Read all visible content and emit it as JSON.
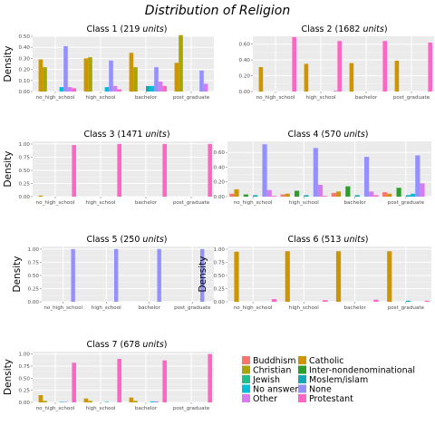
{
  "title": "Distribution of Religion",
  "colors": {
    "panel_bg": "#ebebeb",
    "grid": "#ffffff",
    "tick_text": "#4d4d4d"
  },
  "legend": [
    {
      "label": "Buddhism",
      "color": "#f8766d"
    },
    {
      "label": "Catholic",
      "color": "#cd9600"
    },
    {
      "label": "Christian",
      "color": "#a8a400"
    },
    {
      "label": "Inter-nondenominational",
      "color": "#2aa02a"
    },
    {
      "label": "Jewish",
      "color": "#1fbf8c"
    },
    {
      "label": "Moslem/islam",
      "color": "#11aab4"
    },
    {
      "label": "No answer",
      "color": "#00bfd8"
    },
    {
      "label": "None",
      "color": "#9590ff"
    },
    {
      "label": "Other",
      "color": "#d87bf0"
    },
    {
      "label": "Protestant",
      "color": "#ff66c4"
    }
  ],
  "chart_data": [
    {
      "type": "bar",
      "title": "Class 1 (219 units)",
      "ylabel": "Density",
      "categories": [
        "no_high_school",
        "high_school",
        "bachelor",
        "post_graduate"
      ],
      "ylim": [
        0,
        0.5
      ],
      "yticks": [
        0.0,
        0.1,
        0.2,
        0.3,
        0.4,
        0.5
      ],
      "series": [
        {
          "name": "Buddhism",
          "values": [
            0,
            0,
            0,
            0
          ]
        },
        {
          "name": "Catholic",
          "values": [
            0.29,
            0.3,
            0.35,
            0.26
          ]
        },
        {
          "name": "Christian",
          "values": [
            0.22,
            0.31,
            0.22,
            0.51
          ]
        },
        {
          "name": "Inter-nondenominational",
          "values": [
            0,
            0,
            0,
            0
          ]
        },
        {
          "name": "Jewish",
          "values": [
            0,
            0,
            0,
            0
          ]
        },
        {
          "name": "Moslem/islam",
          "values": [
            0,
            0,
            0.05,
            0
          ]
        },
        {
          "name": "No answer",
          "values": [
            0.04,
            0.04,
            0.05,
            0
          ]
        },
        {
          "name": "None",
          "values": [
            0.41,
            0.28,
            0.22,
            0.19
          ]
        },
        {
          "name": "Other",
          "values": [
            0.04,
            0.05,
            0.09,
            0.07
          ]
        },
        {
          "name": "Protestant",
          "values": [
            0.03,
            0.02,
            0.05,
            0
          ]
        }
      ]
    },
    {
      "type": "bar",
      "title": "Class 2 (1682 units)",
      "ylabel": "",
      "categories": [
        "no_high_school",
        "high_school",
        "bachelor",
        "post_graduate"
      ],
      "ylim": [
        0,
        0.7
      ],
      "yticks": [
        0.0,
        0.2,
        0.4,
        0.6
      ],
      "series": [
        {
          "name": "Buddhism",
          "values": [
            0,
            0,
            0,
            0
          ]
        },
        {
          "name": "Catholic",
          "values": [
            0.31,
            0.35,
            0.36,
            0.39
          ]
        },
        {
          "name": "Christian",
          "values": [
            0,
            0,
            0,
            0
          ]
        },
        {
          "name": "Inter-nondenominational",
          "values": [
            0,
            0,
            0,
            0
          ]
        },
        {
          "name": "Jewish",
          "values": [
            0,
            0,
            0,
            0
          ]
        },
        {
          "name": "Moslem/islam",
          "values": [
            0,
            0,
            0,
            0
          ]
        },
        {
          "name": "No answer",
          "values": [
            0,
            0,
            0,
            0
          ]
        },
        {
          "name": "None",
          "values": [
            0,
            0,
            0,
            0
          ]
        },
        {
          "name": "Other",
          "values": [
            0,
            0.01,
            0,
            0
          ]
        },
        {
          "name": "Protestant",
          "values": [
            0.69,
            0.64,
            0.64,
            0.62
          ]
        }
      ]
    },
    {
      "type": "bar",
      "title": "Class 3 (1471 units)",
      "ylabel": "Density",
      "categories": [
        "no_high_school",
        "high_school",
        "bachelor",
        "post_graduate"
      ],
      "ylim": [
        0,
        1.05
      ],
      "yticks": [
        0.0,
        0.25,
        0.5,
        0.75,
        1.0
      ],
      "series": [
        {
          "name": "Buddhism",
          "values": [
            0,
            0,
            0,
            0
          ]
        },
        {
          "name": "Catholic",
          "values": [
            0.02,
            0,
            0,
            0
          ]
        },
        {
          "name": "Christian",
          "values": [
            0,
            0,
            0,
            0
          ]
        },
        {
          "name": "Inter-nondenominational",
          "values": [
            0,
            0,
            0,
            0
          ]
        },
        {
          "name": "Jewish",
          "values": [
            0,
            0,
            0,
            0
          ]
        },
        {
          "name": "Moslem/islam",
          "values": [
            0,
            0,
            0,
            0
          ]
        },
        {
          "name": "No answer",
          "values": [
            0,
            0,
            0,
            0
          ]
        },
        {
          "name": "None",
          "values": [
            0,
            0,
            0,
            0
          ]
        },
        {
          "name": "Other",
          "values": [
            0,
            0,
            0,
            0
          ]
        },
        {
          "name": "Protestant",
          "values": [
            0.98,
            1.0,
            1.0,
            1.0
          ]
        }
      ]
    },
    {
      "type": "bar",
      "title": "Class 4 (570 units)",
      "ylabel": "",
      "categories": [
        "no_high_school",
        "high_school",
        "bachelor",
        "post_graduate"
      ],
      "ylim": [
        0,
        0.75
      ],
      "yticks": [
        0.0,
        0.2,
        0.4,
        0.6
      ],
      "series": [
        {
          "name": "Buddhism",
          "values": [
            0.04,
            0.03,
            0.05,
            0.06
          ]
        },
        {
          "name": "Catholic",
          "values": [
            0.1,
            0.04,
            0.07,
            0.04
          ]
        },
        {
          "name": "Christian",
          "values": [
            0,
            0,
            0,
            0
          ]
        },
        {
          "name": "Inter-nondenominational",
          "values": [
            0.03,
            0.08,
            0.14,
            0.12
          ]
        },
        {
          "name": "Jewish",
          "values": [
            0,
            0,
            0,
            0
          ]
        },
        {
          "name": "Moslem/islam",
          "values": [
            0.02,
            0.02,
            0.02,
            0.02
          ]
        },
        {
          "name": "No answer",
          "values": [
            0,
            0,
            0,
            0.04
          ]
        },
        {
          "name": "None",
          "values": [
            0.71,
            0.66,
            0.54,
            0.56
          ]
        },
        {
          "name": "Other",
          "values": [
            0.09,
            0.16,
            0.07,
            0.18
          ]
        },
        {
          "name": "Protestant",
          "values": [
            0.01,
            0.01,
            0.02,
            0
          ]
        }
      ]
    },
    {
      "type": "bar",
      "title": "Class 5 (250 units)",
      "ylabel": "Density",
      "categories": [
        "no_high_school",
        "high_school",
        "bachelor",
        "post_graduate"
      ],
      "ylim": [
        0,
        1.05
      ],
      "yticks": [
        0.0,
        0.25,
        0.5,
        0.75,
        1.0
      ],
      "series": [
        {
          "name": "Buddhism",
          "values": [
            0,
            0,
            0,
            0
          ]
        },
        {
          "name": "Catholic",
          "values": [
            0,
            0,
            0,
            0
          ]
        },
        {
          "name": "Christian",
          "values": [
            0,
            0,
            0,
            0
          ]
        },
        {
          "name": "Inter-nondenominational",
          "values": [
            0,
            0,
            0,
            0
          ]
        },
        {
          "name": "Jewish",
          "values": [
            0,
            0,
            0,
            0
          ]
        },
        {
          "name": "Moslem/islam",
          "values": [
            0,
            0,
            0,
            0
          ]
        },
        {
          "name": "No answer",
          "values": [
            0,
            0,
            0,
            0
          ]
        },
        {
          "name": "None",
          "values": [
            1.0,
            1.0,
            1.0,
            1.0
          ]
        },
        {
          "name": "Other",
          "values": [
            0,
            0,
            0,
            0
          ]
        },
        {
          "name": "Protestant",
          "values": [
            0,
            0,
            0,
            0
          ]
        }
      ]
    },
    {
      "type": "bar",
      "title": "Class 6 (513 units)",
      "ylabel": "Density",
      "categories": [
        "no_high_school",
        "high_school",
        "bachelor",
        "post_graduate"
      ],
      "ylim": [
        0,
        1.05
      ],
      "yticks": [
        0.0,
        0.25,
        0.5,
        0.75,
        1.0
      ],
      "series": [
        {
          "name": "Buddhism",
          "values": [
            0,
            0,
            0,
            0
          ]
        },
        {
          "name": "Catholic",
          "values": [
            0.95,
            0.96,
            0.96,
            0.96
          ]
        },
        {
          "name": "Christian",
          "values": [
            0,
            0,
            0,
            0
          ]
        },
        {
          "name": "Inter-nondenominational",
          "values": [
            0,
            0,
            0,
            0
          ]
        },
        {
          "name": "Jewish",
          "values": [
            0,
            0,
            0,
            0
          ]
        },
        {
          "name": "Moslem/islam",
          "values": [
            0,
            0,
            0,
            0.02
          ]
        },
        {
          "name": "No answer",
          "values": [
            0,
            0,
            0,
            0
          ]
        },
        {
          "name": "None",
          "values": [
            0,
            0,
            0,
            0
          ]
        },
        {
          "name": "Other",
          "values": [
            0,
            0,
            0,
            0
          ]
        },
        {
          "name": "Protestant",
          "values": [
            0.05,
            0.03,
            0.04,
            0.02
          ]
        }
      ]
    },
    {
      "type": "bar",
      "title": "Class 7 (678 units)",
      "ylabel": "Density",
      "categories": [
        "no_high_school",
        "high_school",
        "bachelor",
        "post_graduate"
      ],
      "ylim": [
        0,
        1.05
      ],
      "yticks": [
        0.0,
        0.25,
        0.5,
        0.75,
        1.0
      ],
      "series": [
        {
          "name": "Buddhism",
          "values": [
            0,
            0,
            0,
            0
          ]
        },
        {
          "name": "Catholic",
          "values": [
            0.15,
            0.08,
            0.1,
            0
          ]
        },
        {
          "name": "Christian",
          "values": [
            0.03,
            0.03,
            0.03,
            0
          ]
        },
        {
          "name": "Inter-nondenominational",
          "values": [
            0,
            0,
            0,
            0
          ]
        },
        {
          "name": "Jewish",
          "values": [
            0,
            0,
            0,
            0
          ]
        },
        {
          "name": "Moslem/islam",
          "values": [
            0,
            0,
            0,
            0
          ]
        },
        {
          "name": "No answer",
          "values": [
            0.01,
            0.01,
            0.02,
            0
          ]
        },
        {
          "name": "None",
          "values": [
            0.01,
            0,
            0.02,
            0
          ]
        },
        {
          "name": "Other",
          "values": [
            0,
            0,
            0,
            0
          ]
        },
        {
          "name": "Protestant",
          "values": [
            0.82,
            0.9,
            0.87,
            1.0
          ]
        }
      ]
    }
  ]
}
